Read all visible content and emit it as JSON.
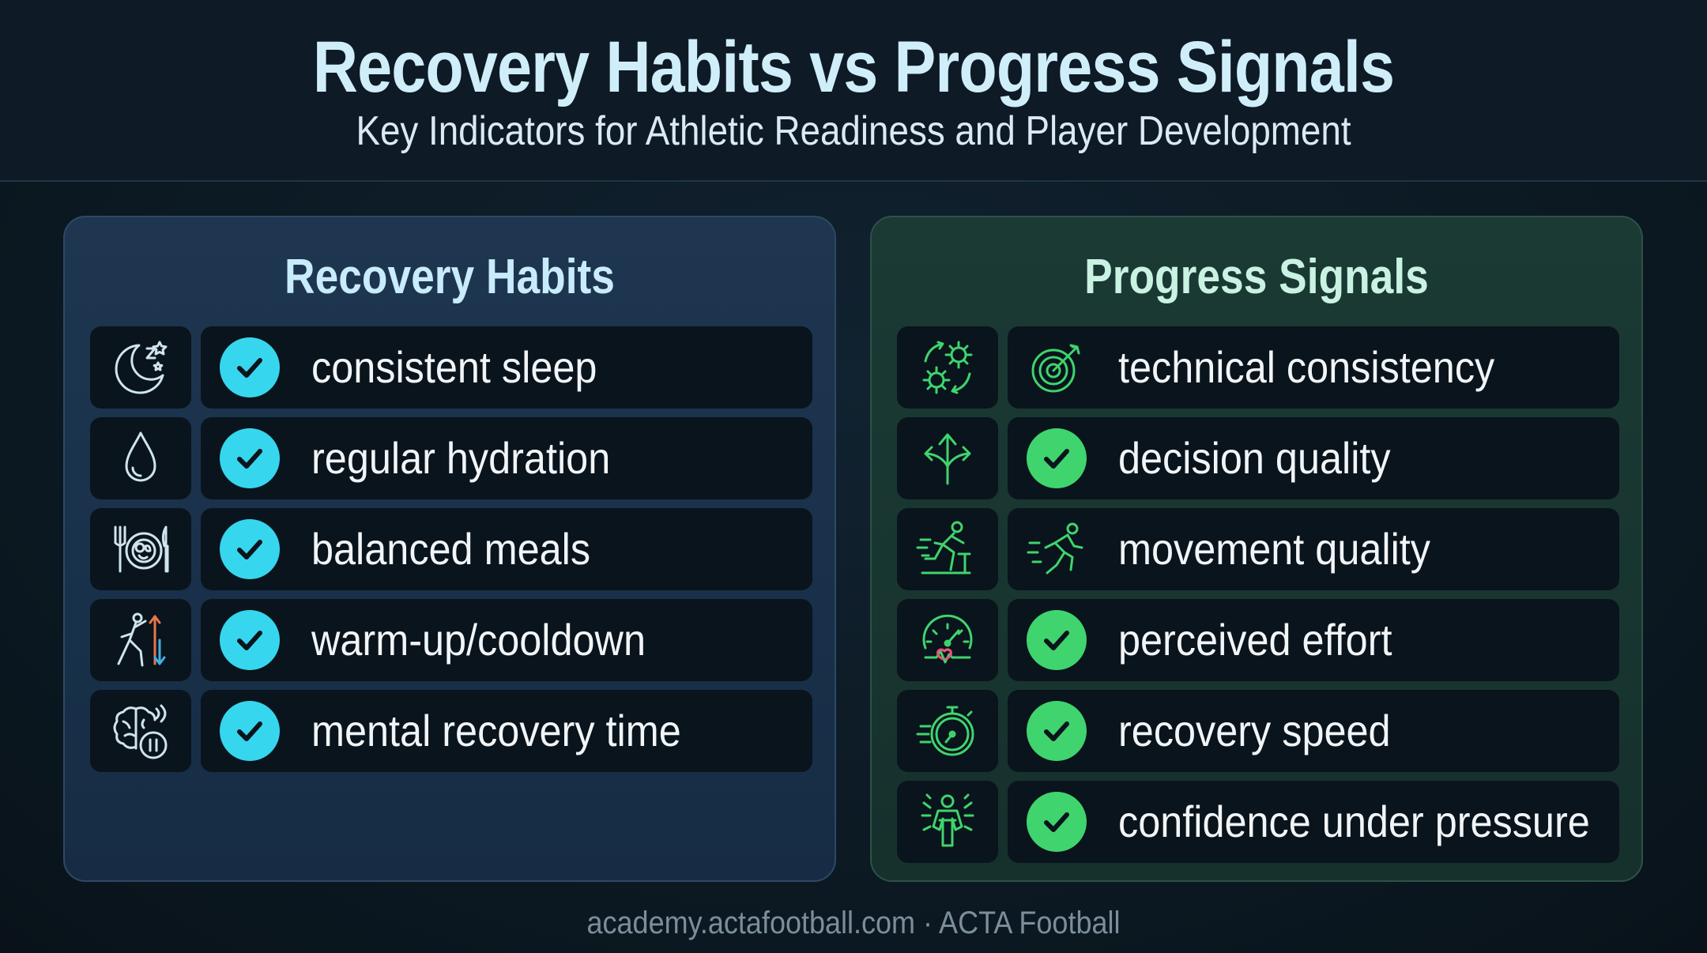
{
  "header": {
    "title": "Recovery Habits vs Progress Signals",
    "subtitle": "Key Indicators for Athletic Readiness and Player Development"
  },
  "colors": {
    "background": "#0d1b26",
    "recovery_accent": "#36d6ee",
    "progress_accent": "#3fd46e",
    "recovery_panel": "#1e3650",
    "progress_panel": "#1b3a34"
  },
  "recovery": {
    "title": "Recovery Habits",
    "items": [
      {
        "icon": "moon-stars-icon",
        "label": "consistent sleep"
      },
      {
        "icon": "water-drop-icon",
        "label": "regular hydration"
      },
      {
        "icon": "plate-cutlery-icon",
        "label": "balanced meals"
      },
      {
        "icon": "stretch-arrows-icon",
        "label": "warm-up/cooldown"
      },
      {
        "icon": "brain-pause-icon",
        "label": "mental recovery time"
      }
    ]
  },
  "progress": {
    "title": "Progress Signals",
    "items": [
      {
        "icon": "gears-cycle-icon",
        "status_icon": "target-icon",
        "label": "technical consistency"
      },
      {
        "icon": "split-arrows-icon",
        "status_icon": "check-icon",
        "label": "decision quality"
      },
      {
        "icon": "sprinter-icon",
        "status_icon": "runner-icon",
        "label": "movement quality"
      },
      {
        "icon": "gauge-heartbeat-icon",
        "status_icon": "check-icon",
        "label": "perceived effort"
      },
      {
        "icon": "stopwatch-icon",
        "status_icon": "check-icon",
        "label": "recovery speed"
      },
      {
        "icon": "strong-figure-icon",
        "status_icon": "check-icon",
        "label": "confidence under pressure"
      }
    ]
  },
  "footer": {
    "text": "academy.actafootball.com · ACTA Football"
  }
}
